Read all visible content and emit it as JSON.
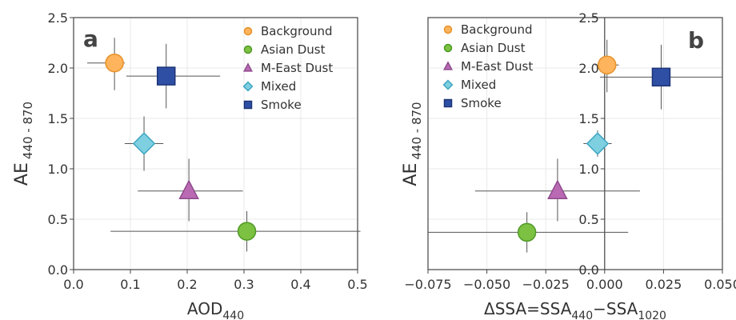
{
  "chart_data": [
    {
      "type": "scatter",
      "panel_label": "a",
      "xlabel": "AOD",
      "xlabel_sub": "440",
      "ylabel": "AE",
      "ylabel_sub": "440 - 870",
      "xlim": [
        0.0,
        0.5
      ],
      "ylim": [
        0.0,
        2.5
      ],
      "xticks": [
        0.0,
        0.1,
        0.2,
        0.3,
        0.4,
        0.5
      ],
      "xtick_labels": [
        "0.0",
        "0.1",
        "0.2",
        "0.3",
        "0.4",
        "0.5"
      ],
      "yticks": [
        0.0,
        0.5,
        1.0,
        1.5,
        2.0,
        2.5
      ],
      "ytick_labels": [
        "0.0",
        "0.5",
        "1.0",
        "1.5",
        "2.0",
        "2.5"
      ],
      "grid": true,
      "legend_position": "top-right",
      "series": [
        {
          "name": "Background",
          "marker": "circle",
          "color": "#fdb45c",
          "edge": "#e8912a",
          "x": 0.072,
          "y": 2.05,
          "xerr": [
            0.048,
            0.018
          ],
          "yerr": [
            0.27,
            0.25
          ]
        },
        {
          "name": "Asian Dust",
          "marker": "circle",
          "color": "#7dc142",
          "edge": "#4f9a26",
          "x": 0.305,
          "y": 0.38,
          "xerr": [
            0.24,
            0.2
          ],
          "yerr": [
            0.2,
            0.2
          ]
        },
        {
          "name": "M-East Dust",
          "marker": "triangle",
          "color": "#b96ab3",
          "edge": "#8e4a8b",
          "x": 0.203,
          "y": 0.78,
          "xerr": [
            0.09,
            0.095
          ],
          "yerr": [
            0.3,
            0.32
          ]
        },
        {
          "name": "Mixed",
          "marker": "diamond",
          "color": "#7ecfe0",
          "edge": "#3ea6c2",
          "x": 0.124,
          "y": 1.25,
          "xerr": [
            0.034,
            0.034
          ],
          "yerr": [
            0.27,
            0.27
          ]
        },
        {
          "name": "Smoke",
          "marker": "square",
          "color": "#2e4fa3",
          "edge": "#1c3378",
          "x": 0.163,
          "y": 1.92,
          "xerr": [
            0.07,
            0.095
          ],
          "yerr": [
            0.32,
            0.32
          ]
        }
      ]
    },
    {
      "type": "scatter",
      "panel_label": "b",
      "xlabel": "ΔSSA=SSA",
      "xlabel_parts": [
        "ΔSSA=SSA",
        "440",
        "−SSA",
        "1020"
      ],
      "ylabel": "AE",
      "ylabel_sub": "440 - 870",
      "xlim": [
        -0.075,
        0.05
      ],
      "ylim": [
        0.0,
        2.5
      ],
      "xticks": [
        -0.075,
        -0.05,
        -0.025,
        0.0,
        0.025,
        0.05
      ],
      "xtick_labels": [
        "−0.075",
        "−0.050",
        "−0.025",
        "0.000",
        "0.025",
        "0.050"
      ],
      "yticks": [
        0.0,
        0.5,
        1.0,
        1.5,
        2.0,
        2.5
      ],
      "ytick_labels": [
        "0.0",
        "0.5",
        "1.0",
        "1.5",
        "2.0",
        "2.5"
      ],
      "y_axis_at_x": 0.0,
      "grid": true,
      "legend_position": "top-left",
      "series": [
        {
          "name": "Background",
          "marker": "circle",
          "color": "#fdb45c",
          "edge": "#e8912a",
          "x": 0.001,
          "y": 2.03,
          "xerr": [
            0.005,
            0.005
          ],
          "yerr": [
            0.27,
            0.25
          ]
        },
        {
          "name": "Asian Dust",
          "marker": "circle",
          "color": "#7dc142",
          "edge": "#4f9a26",
          "x": -0.033,
          "y": 0.37,
          "xerr": [
            0.042,
            0.043
          ],
          "yerr": [
            0.2,
            0.2
          ]
        },
        {
          "name": "M-East Dust",
          "marker": "triangle",
          "color": "#b96ab3",
          "edge": "#8e4a8b",
          "x": -0.02,
          "y": 0.78,
          "xerr": [
            0.035,
            0.035
          ],
          "yerr": [
            0.3,
            0.32
          ]
        },
        {
          "name": "Mixed",
          "marker": "diamond",
          "color": "#7ecfe0",
          "edge": "#3ea6c2",
          "x": -0.003,
          "y": 1.25,
          "xerr": [
            0.006,
            0.006
          ],
          "yerr": [
            0.13,
            0.13
          ]
        },
        {
          "name": "Smoke",
          "marker": "square",
          "color": "#2e4fa3",
          "edge": "#1c3378",
          "x": 0.024,
          "y": 1.91,
          "xerr": [
            0.026,
            0.026
          ],
          "yerr": [
            0.32,
            0.32
          ]
        }
      ]
    }
  ]
}
